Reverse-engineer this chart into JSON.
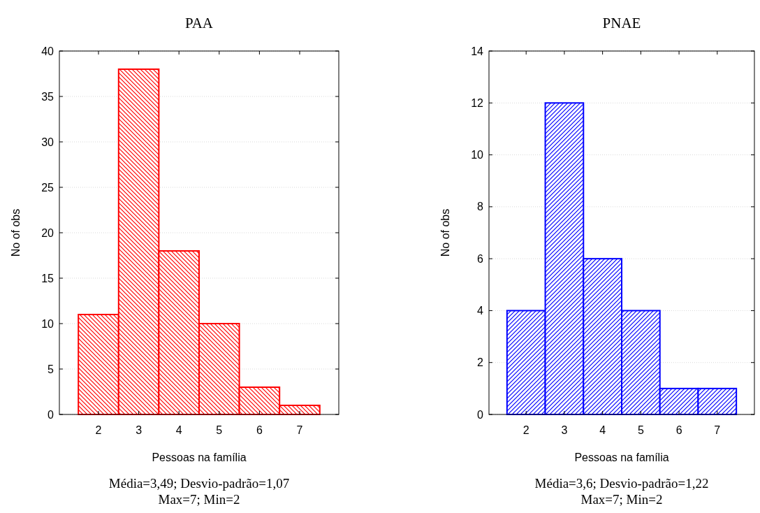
{
  "chart_data": [
    {
      "type": "bar",
      "title": "PAA",
      "xlabel": "Pessoas na família",
      "ylabel": "No of obs",
      "categories": [
        "2",
        "3",
        "4",
        "5",
        "6",
        "7"
      ],
      "values": [
        11,
        38,
        18,
        10,
        3,
        1
      ],
      "color": "#ff0000",
      "ylim": [
        0,
        40
      ],
      "yticks": [
        0,
        5,
        10,
        15,
        20,
        25,
        30,
        35,
        40
      ],
      "grid": "y",
      "annotations": [
        "Média=3,49; Desvio-padrão=1,07",
        "Max=7; Min=2"
      ]
    },
    {
      "type": "bar",
      "title": "PNAE",
      "xlabel": "Pessoas na família",
      "ylabel": "No of obs",
      "categories": [
        "2",
        "3",
        "4",
        "5",
        "6",
        "7"
      ],
      "values": [
        4,
        12,
        6,
        4,
        1,
        1
      ],
      "color": "#0000ff",
      "ylim": [
        0,
        14
      ],
      "yticks": [
        0,
        2,
        4,
        6,
        8,
        10,
        12,
        14
      ],
      "grid": "y",
      "annotations": [
        "Média=3,6; Desvio-padrão=1,22",
        "Max=7; Min=2"
      ]
    }
  ]
}
